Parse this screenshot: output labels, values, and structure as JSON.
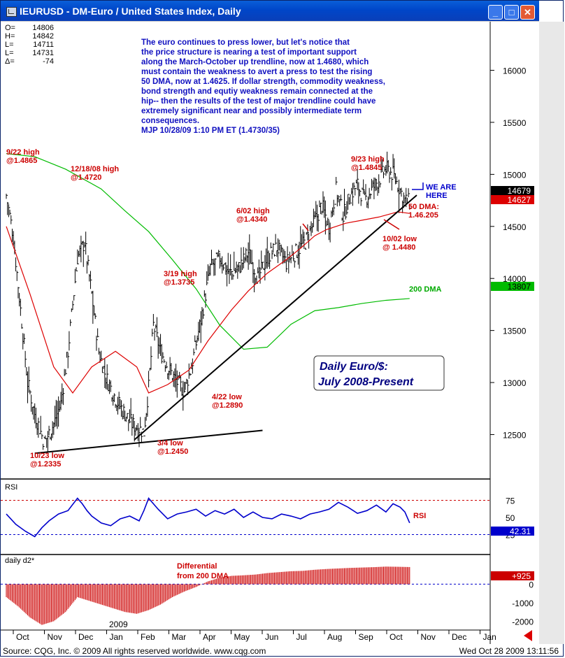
{
  "window": {
    "title": "IEURUSD - DM-Euro / United States Index, Daily",
    "buttons": {
      "minimize": "_",
      "maximize": "□",
      "close": "✕"
    }
  },
  "ohlc": [
    {
      "k": "O=",
      "v": "14806"
    },
    {
      "k": "H=",
      "v": "14842"
    },
    {
      "k": "L=",
      "v": "14711"
    },
    {
      "k": "L=",
      "v": "14731"
    },
    {
      "k": "Δ=",
      "v": "-74"
    }
  ],
  "commentary": [
    "The euro continues to press lower, but let's notice that",
    "the price structure is nearing a test of important support",
    "along the March-October up trendline, now at 1.4680, which",
    "must contain the weakness to avert a press to test the rising",
    "50 DMA, now at 1.4625. If dollar strength, commodity weakness,",
    "bond strength and equtiy weakness remain connected at the",
    "hip-- then the results of the test of major trendline could have",
    "extremely significant near and possibly intermediate term",
    "consequences.",
    "MJP  10/28/09  1:10 PM ET (1.4730/35)"
  ],
  "chart_data": {
    "type": "line",
    "title": "Daily Euro/$:",
    "subtitle": "July 2008-Present",
    "x_tick_labels": [
      "Oct",
      "Nov",
      "Dec",
      "Jan",
      "Feb",
      "Mar",
      "Apr",
      "May",
      "Jun",
      "Jul",
      "Aug",
      "Sep",
      "Oct",
      "Nov",
      "Dec",
      "Jan"
    ],
    "year_label": "2009",
    "price_axis": {
      "ticks": [
        12500,
        13000,
        13500,
        14000,
        14500,
        15000,
        15500,
        16000
      ],
      "ylim": [
        12100,
        16400
      ]
    },
    "price_tags": [
      {
        "value": "14679",
        "color": "#000000",
        "text_color": "#ffffff"
      },
      {
        "value": "14627",
        "color": "#dd0000",
        "text_color": "#ffffff"
      },
      {
        "value": "13807",
        "color": "#00bb00",
        "text_color": "#000000"
      }
    ],
    "series": [
      {
        "name": "50 DMA",
        "color": "#dd0000",
        "x": [
          0,
          10,
          20,
          28,
          36,
          46,
          55,
          60,
          68,
          77,
          85,
          95,
          102,
          110,
          118,
          124,
          130,
          135,
          143,
          150,
          157,
          165,
          170
        ],
        "values": [
          14500,
          13850,
          13150,
          12900,
          13150,
          13300,
          13150,
          12900,
          12980,
          13120,
          13400,
          13700,
          13880,
          14050,
          14180,
          14290,
          14410,
          14470,
          14530,
          14560,
          14590,
          14640,
          14625
        ]
      },
      {
        "name": "200 DMA",
        "color": "#00bb00",
        "x": [
          0,
          12,
          25,
          40,
          50,
          60,
          70,
          80,
          90,
          100,
          110,
          120,
          130,
          140,
          150,
          160,
          170
        ],
        "values": [
          15200,
          15170,
          15050,
          14860,
          14650,
          14450,
          14180,
          13900,
          13550,
          13320,
          13340,
          13560,
          13690,
          13720,
          13760,
          13790,
          13807
        ]
      }
    ],
    "close_path": {
      "x": [
        0,
        3,
        6,
        9,
        12,
        16,
        20,
        23,
        26,
        30,
        33,
        36,
        39,
        42,
        46,
        50,
        53,
        56,
        58,
        60,
        62,
        65,
        68,
        72,
        75,
        78,
        82,
        86,
        90,
        94,
        98,
        102,
        106,
        110,
        114,
        118,
        122,
        126,
        130,
        133,
        136,
        139,
        142,
        145,
        148,
        151,
        154,
        157,
        160,
        163,
        166,
        168,
        170
      ],
      "values": [
        14800,
        14400,
        13700,
        13000,
        12700,
        12420,
        12600,
        12800,
        13300,
        14200,
        14350,
        13850,
        13300,
        13050,
        12850,
        12700,
        12600,
        12560,
        12520,
        12950,
        13550,
        13300,
        13150,
        13000,
        12920,
        13150,
        13600,
        14100,
        14200,
        14050,
        14100,
        14250,
        14000,
        14200,
        14300,
        14150,
        14250,
        14350,
        14550,
        14700,
        14500,
        14850,
        14600,
        14800,
        14900,
        14750,
        14850,
        14950,
        15050,
        15000,
        14850,
        14750,
        14731
      ]
    },
    "trendlines": [
      {
        "name": "March-October up trendline",
        "from": {
          "x": 54,
          "y": 12450
        },
        "to": {
          "x": 173,
          "y": 14800
        }
      },
      {
        "name": "Oct-Mar support",
        "from": {
          "x": 12,
          "y": 12320
        },
        "to": {
          "x": 108,
          "y": 12540
        }
      }
    ],
    "annotations": [
      {
        "text": "9/22 high",
        "value": "@1.4865",
        "color": "#cc0000"
      },
      {
        "text": "12/18/08 high",
        "value": "@1.4720",
        "color": "#cc0000"
      },
      {
        "text": "3/19 high",
        "value": "@1.3735",
        "color": "#cc0000"
      },
      {
        "text": "6/02 high",
        "value": "@1.4340",
        "color": "#cc0000"
      },
      {
        "text": "9/23 high",
        "value": "@1.4845",
        "color": "#cc0000"
      },
      {
        "text": "10/23 low",
        "value": "@1.2335",
        "color": "#cc0000"
      },
      {
        "text": "3/4 low",
        "value": "@1.2450",
        "color": "#cc0000"
      },
      {
        "text": "4/22 low",
        "value": "@1.2890",
        "color": "#cc0000"
      },
      {
        "text": "10/02 low",
        "value": "@ 1.4480",
        "color": "#cc0000"
      },
      {
        "text": "50 DMA:",
        "value": "1.46.205",
        "color": "#cc0000"
      },
      {
        "text": "WE ARE",
        "value": "HERE",
        "color": "#0000cc"
      },
      {
        "text": "200 DMA",
        "value": "",
        "color": "#00aa00"
      }
    ],
    "rsi": {
      "label": "RSI",
      "annotation": "RSI",
      "levels": [
        75,
        50,
        25
      ],
      "tag": "42.31",
      "x": [
        0,
        4,
        8,
        12,
        15,
        18,
        22,
        26,
        30,
        32,
        34,
        36,
        40,
        44,
        48,
        52,
        56,
        58,
        60,
        64,
        68,
        72,
        76,
        80,
        84,
        88,
        92,
        96,
        100,
        104,
        108,
        112,
        116,
        120,
        124,
        128,
        132,
        136,
        140,
        144,
        148,
        152,
        156,
        160,
        163,
        166,
        168,
        170
      ],
      "values": [
        55,
        40,
        30,
        22,
        35,
        45,
        55,
        60,
        78,
        70,
        60,
        52,
        42,
        38,
        48,
        52,
        45,
        60,
        78,
        62,
        48,
        55,
        58,
        62,
        52,
        60,
        55,
        62,
        50,
        58,
        50,
        48,
        55,
        52,
        48,
        55,
        58,
        62,
        72,
        65,
        56,
        60,
        68,
        58,
        70,
        65,
        58,
        42
      ]
    },
    "differential": {
      "label": "daily d2*",
      "annotation_line1": "Differential",
      "annotation_line2": "from 200 DMA",
      "ticks": [
        0,
        -1000,
        -2000
      ],
      "tag": "+925",
      "x": [
        0,
        5,
        10,
        15,
        20,
        25,
        30,
        35,
        40,
        45,
        50,
        55,
        60,
        65,
        70,
        75,
        80,
        85,
        90,
        95,
        100,
        105,
        110,
        115,
        120,
        125,
        130,
        135,
        140,
        145,
        150,
        155,
        160,
        165,
        170
      ],
      "values": [
        -700,
        -1200,
        -1800,
        -2200,
        -2000,
        -1500,
        -700,
        -900,
        -1100,
        -1300,
        -1500,
        -1600,
        -1400,
        -1100,
        -700,
        -400,
        -150,
        150,
        350,
        450,
        480,
        520,
        600,
        650,
        700,
        720,
        780,
        820,
        850,
        880,
        900,
        920,
        950,
        940,
        925
      ]
    }
  },
  "footer": {
    "source": "Source: CQG, Inc. © 2009 All rights reserved worldwide. www.cqg.com",
    "timestamp": "Wed Oct 28 2009 13:11:56"
  }
}
